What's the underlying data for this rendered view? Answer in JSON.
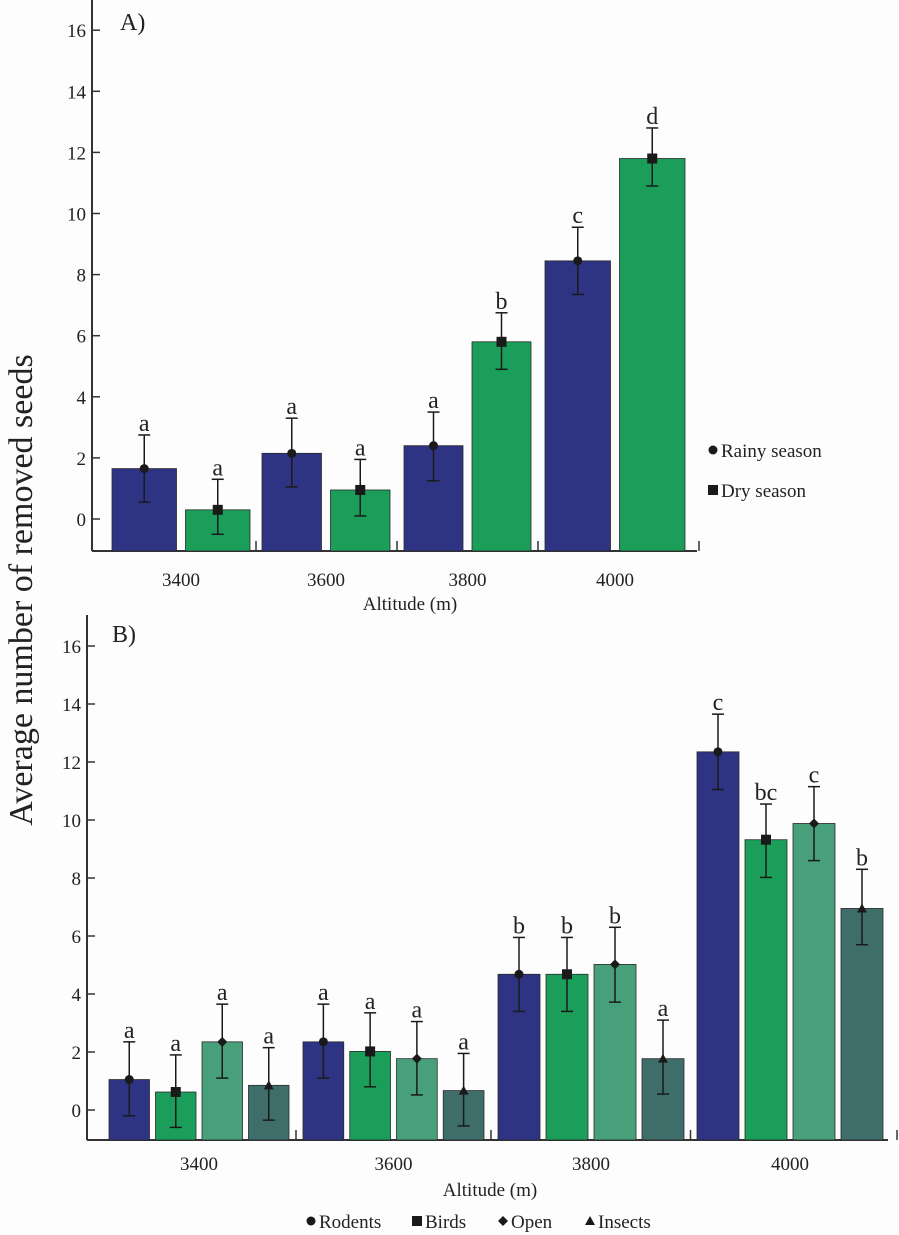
{
  "chart_data": {
    "ylabel": "Average number of removed seeds",
    "panels": [
      {
        "type": "bar",
        "panel_label": "A)",
        "xlabel": "Altitude (m)",
        "ylim": [
          -1,
          17
        ],
        "yticks": [
          0,
          2,
          4,
          6,
          8,
          10,
          12,
          14,
          16
        ],
        "categories": [
          "3400",
          "3600",
          "3800",
          "4000"
        ],
        "legend": {
          "placement": "right",
          "entries": [
            {
              "marker": "circle",
              "label": "Rainy season"
            },
            {
              "marker": "square",
              "label": "Dry season"
            }
          ]
        },
        "series": [
          {
            "name": "Rainy season",
            "color": "#2e3383",
            "marker": "circle",
            "values": [
              1.65,
              2.15,
              2.4,
              8.45
            ],
            "err_low": [
              0.55,
              1.05,
              1.25,
              7.35
            ],
            "err_high": [
              2.75,
              3.3,
              3.5,
              9.55
            ],
            "sig": [
              "a",
              "a",
              "a",
              "c"
            ]
          },
          {
            "name": "Dry season",
            "color": "#1a9e5a",
            "marker": "square",
            "values": [
              0.3,
              0.95,
              5.8,
              11.8
            ],
            "err_low": [
              -0.5,
              0.1,
              4.9,
              10.9
            ],
            "err_high": [
              1.3,
              1.95,
              6.75,
              12.8
            ],
            "sig": [
              "a",
              "a",
              "b",
              "d"
            ]
          }
        ]
      },
      {
        "type": "bar",
        "panel_label": "B)",
        "xlabel": "Altitude (m)",
        "ylim": [
          -1,
          17
        ],
        "yticks": [
          0,
          2,
          4,
          6,
          8,
          10,
          12,
          14,
          16
        ],
        "categories": [
          "3400",
          "3600",
          "3800",
          "4000"
        ],
        "legend": {
          "placement": "bottom",
          "entries": [
            {
              "marker": "circle",
              "label": "Rodents"
            },
            {
              "marker": "square",
              "label": "Birds"
            },
            {
              "marker": "diamond",
              "label": "Open"
            },
            {
              "marker": "triangle",
              "label": "Insects"
            }
          ]
        },
        "series": [
          {
            "name": "Rodents",
            "color": "#2e3383",
            "marker": "circle",
            "values": [
              1.05,
              2.35,
              4.68,
              12.35
            ],
            "err_low": [
              -0.2,
              1.1,
              3.4,
              11.05
            ],
            "err_high": [
              2.35,
              3.65,
              5.95,
              13.65
            ],
            "sig": [
              "a",
              "a",
              "b",
              "c"
            ]
          },
          {
            "name": "Birds",
            "color": "#1a9e5a",
            "marker": "square",
            "values": [
              0.62,
              2.02,
              4.68,
              9.32
            ],
            "err_low": [
              -0.6,
              0.8,
              3.4,
              8.02
            ],
            "err_high": [
              1.9,
              3.35,
              5.95,
              10.55
            ],
            "sig": [
              "a",
              "a",
              "b",
              "bc"
            ]
          },
          {
            "name": "Open",
            "color": "#47a07a",
            "marker": "diamond",
            "values": [
              2.35,
              1.77,
              5.02,
              9.88
            ],
            "err_low": [
              1.1,
              0.52,
              3.72,
              8.6
            ],
            "err_high": [
              3.65,
              3.05,
              6.3,
              11.15
            ],
            "sig": [
              "a",
              "a",
              "b",
              "c"
            ]
          },
          {
            "name": "Insects",
            "color": "#3f6e6a",
            "marker": "triangle",
            "values": [
              0.85,
              0.67,
              1.77,
              6.95
            ],
            "err_low": [
              -0.35,
              -0.55,
              0.55,
              5.7
            ],
            "err_high": [
              2.15,
              1.95,
              3.1,
              8.3
            ],
            "sig": [
              "a",
              "a",
              "a",
              "b"
            ]
          }
        ]
      }
    ]
  }
}
